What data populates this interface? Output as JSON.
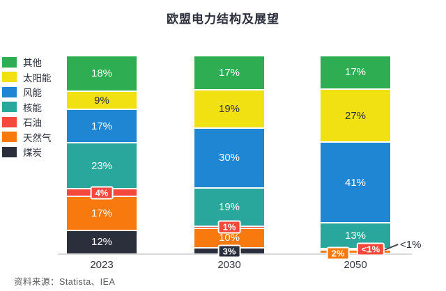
{
  "page": {
    "title": "欧盟电力结构及展望",
    "source": "资料来源：Statista、IEA"
  },
  "chart_data": {
    "type": "bar",
    "variant": "stacked-percentage-column",
    "title": "欧盟电力结构及展望",
    "categories": [
      "2023",
      "2030",
      "2050"
    ],
    "legend_position": "left",
    "grid": false,
    "baseline_axis": true,
    "axis_color": "#d9d9d9",
    "series": [
      {
        "name": "其他",
        "color": "#2ead52",
        "values": [
          18,
          17,
          17
        ],
        "labels": [
          "18%",
          "17%",
          "17%"
        ],
        "label_mode": [
          "inside",
          "inside",
          "inside"
        ],
        "text": "white"
      },
      {
        "name": "太阳能",
        "color": "#f2e112",
        "values": [
          9,
          19,
          27
        ],
        "labels": [
          "9%",
          "19%",
          "27%"
        ],
        "label_mode": [
          "inside",
          "inside",
          "inside"
        ],
        "text": "dark"
      },
      {
        "name": "风能",
        "color": "#1f86d3",
        "values": [
          17,
          30,
          41
        ],
        "labels": [
          "17%",
          "30%",
          "41%"
        ],
        "label_mode": [
          "inside",
          "inside",
          "inside"
        ],
        "text": "white"
      },
      {
        "name": "核能",
        "color": "#2aa79d",
        "values": [
          23,
          19,
          13
        ],
        "labels": [
          "23%",
          "19%",
          "13%"
        ],
        "label_mode": [
          "inside",
          "inside",
          "inside"
        ],
        "text": "white"
      },
      {
        "name": "石油",
        "color": "#f4483c",
        "values": [
          4,
          1,
          0.5
        ],
        "labels": [
          "4%",
          "1%",
          "<1%"
        ],
        "label_mode": [
          "boxed",
          "boxed",
          "boxed"
        ],
        "label_dx": [
          0,
          0,
          22
        ],
        "label_dy": [
          0,
          0,
          0
        ],
        "text": "white"
      },
      {
        "name": "天然气",
        "color": "#f8790d",
        "values": [
          17,
          10,
          2
        ],
        "labels": [
          "17%",
          "10%",
          "2%"
        ],
        "label_mode": [
          "inside",
          "inside",
          "boxed"
        ],
        "label_dx": [
          0,
          0,
          -25
        ],
        "label_dy": [
          0,
          0,
          3
        ],
        "text": "white"
      },
      {
        "name": "煤炭",
        "color": "#2b2f3c",
        "values": [
          12,
          3,
          0.5
        ],
        "labels": [
          "12%",
          "3%",
          "<1%"
        ],
        "label_mode": [
          "inside",
          "boxed",
          "outside"
        ],
        "label_dx": [
          0,
          0,
          0
        ],
        "label_dy": [
          0,
          0,
          0
        ],
        "text": "white"
      }
    ],
    "outside_annotation": {
      "text": "<1%",
      "category": "2050",
      "series": "煤炭"
    },
    "source": "资料来源：Statista、IEA"
  }
}
